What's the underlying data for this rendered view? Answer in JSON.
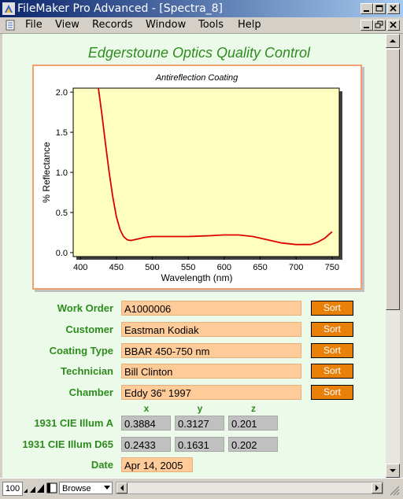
{
  "window": {
    "title": "FileMaker Pro Advanced - [Spectra_8]"
  },
  "menu": [
    "File",
    "View",
    "Records",
    "Window",
    "Tools",
    "Help"
  ],
  "heading": "Edgerstoune Optics Quality Control",
  "chart_data": {
    "type": "line",
    "title": "Antireflection Coating",
    "xlabel": "Wavelength (nm)",
    "ylabel": "% Reflectance",
    "xlim": [
      390,
      760
    ],
    "ylim": [
      -0.05,
      2.05
    ],
    "xticks": [
      "400",
      "450",
      "500",
      "550",
      "600",
      "650",
      "700",
      "750"
    ],
    "yticks": [
      "0.0",
      "0.5",
      "1.0",
      "1.5",
      "2.0"
    ],
    "grid": false,
    "series": [
      {
        "x": [
          425,
          430,
          435,
          440,
          445,
          450,
          455,
          460,
          465,
          470,
          475,
          480,
          490,
          500,
          520,
          550,
          580,
          600,
          620,
          640,
          660,
          680,
          700,
          720,
          730,
          740,
          750
        ],
        "y": [
          2.05,
          1.72,
          1.35,
          1.0,
          0.7,
          0.45,
          0.29,
          0.2,
          0.16,
          0.15,
          0.16,
          0.17,
          0.19,
          0.2,
          0.2,
          0.2,
          0.21,
          0.22,
          0.22,
          0.2,
          0.16,
          0.12,
          0.1,
          0.1,
          0.13,
          0.18,
          0.26
        ],
        "color": "#e00000"
      }
    ]
  },
  "fields": [
    {
      "label": "Work Order",
      "value": "A1000006",
      "sort": "Sort"
    },
    {
      "label": "Customer",
      "value": "Eastman Kodiak",
      "sort": "Sort"
    },
    {
      "label": "Coating Type",
      "value": "BBAR 450-750 nm",
      "sort": "Sort"
    },
    {
      "label": "Technician",
      "value": "Bill Clinton",
      "sort": "Sort"
    },
    {
      "label": "Chamber",
      "value": "Eddy 36\" 1997",
      "sort": "Sort"
    }
  ],
  "cie": {
    "headers": [
      "x",
      "y",
      "z"
    ],
    "rows": [
      {
        "label": "1931 CIE Illum A",
        "values": [
          "0.3884",
          "0.3127",
          "0.201"
        ]
      },
      {
        "label": "1931 CIE Illum D65",
        "values": [
          "0.2433",
          "0.1631",
          "0.202"
        ]
      }
    ]
  },
  "date": {
    "label": "Date",
    "value": "Apr 14, 2005"
  },
  "status": {
    "zoom": "100",
    "mode": "Browse"
  }
}
